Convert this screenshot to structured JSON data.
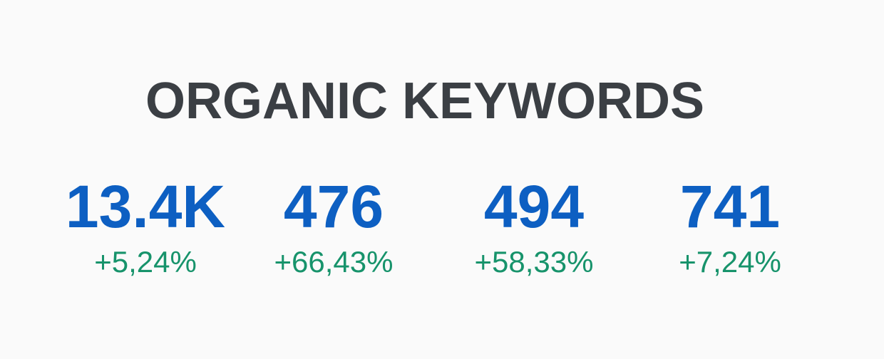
{
  "title": "ORGANIC KEYWORDS",
  "metrics": [
    {
      "value": "13.4K",
      "change": "+5,24%"
    },
    {
      "value": "476",
      "change": "+66,43%"
    },
    {
      "value": "494",
      "change": "+58,33%"
    },
    {
      "value": "741",
      "change": "+7,24%"
    }
  ],
  "colors": {
    "title": "#3b3f44",
    "value": "#0d5fc2",
    "change_positive": "#17936b",
    "background": "#fafafa"
  }
}
